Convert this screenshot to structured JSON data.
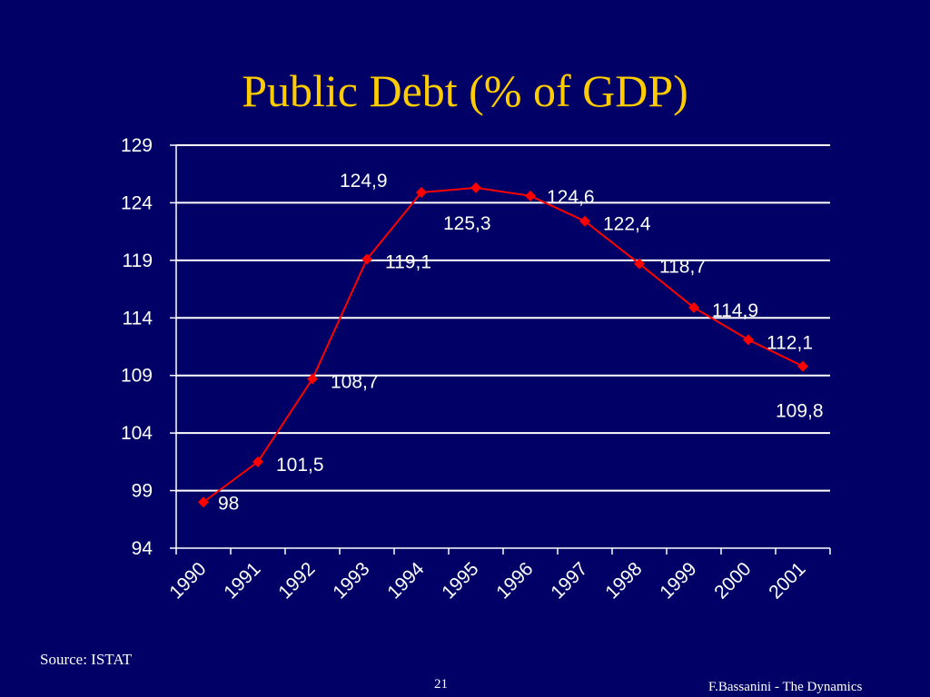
{
  "slide": {
    "title": "Public Debt (% of GDP)",
    "source": "Source: ISTAT",
    "page_number": "21",
    "footer": "F.Bassanini - The Dynamics"
  },
  "chart_data": {
    "type": "line",
    "title": "Public Debt (% of GDP)",
    "xlabel": "",
    "ylabel": "",
    "categories": [
      "1990",
      "1991",
      "1992",
      "1993",
      "1994",
      "1995",
      "1996",
      "1997",
      "1998",
      "1999",
      "2000",
      "2001"
    ],
    "series": [
      {
        "values": [
          98,
          101.5,
          108.7,
          119.1,
          124.9,
          125.3,
          124.6,
          122.4,
          118.7,
          114.9,
          112.1,
          109.8
        ],
        "labels": [
          "98",
          "101,5",
          "108,7",
          "119,1",
          "124,9",
          "125,3",
          "124,6",
          "122,4",
          "118,7",
          "114,9",
          "112,1",
          "109,8"
        ],
        "color": "#ff0000",
        "marker": "diamond"
      }
    ],
    "yticks": [
      94,
      99,
      104,
      109,
      114,
      119,
      124,
      129
    ],
    "ylim": [
      94,
      129
    ],
    "grid": "horizontal",
    "gridline_color": "#ffffff",
    "axis_text_color": "#ffffff",
    "background_color": "#000066",
    "title_color": "#ffcc00",
    "legend": "none"
  }
}
